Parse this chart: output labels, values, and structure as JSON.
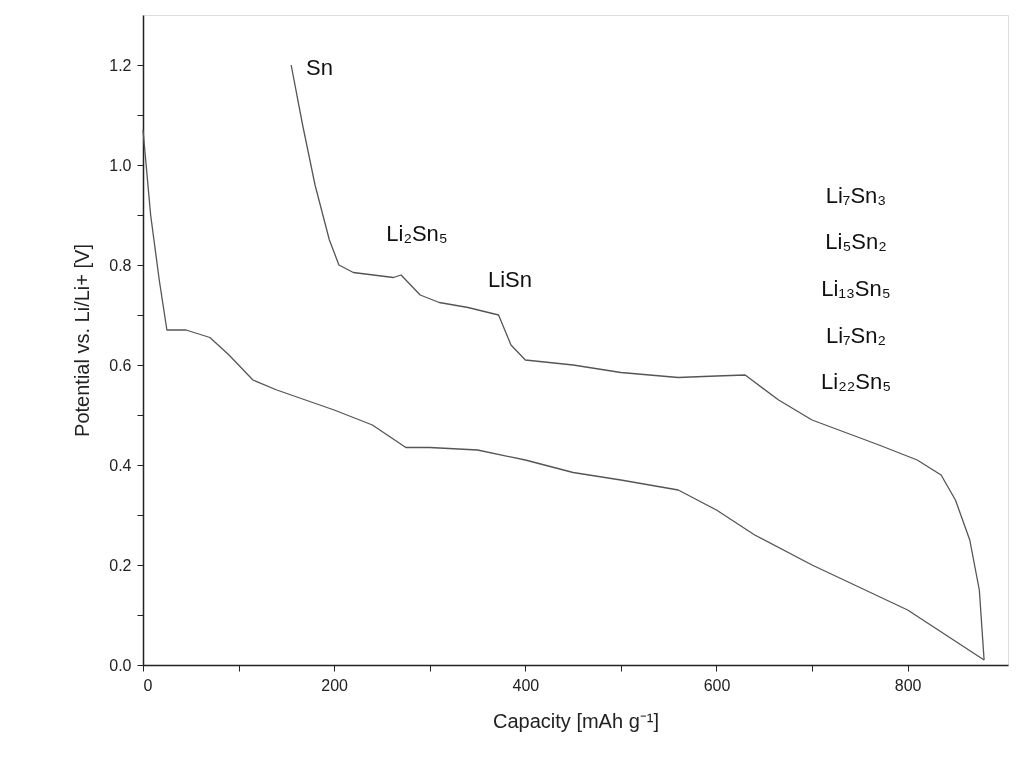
{
  "chart_data": {
    "type": "line",
    "xlabel": "Capacity [mAh g⁻¹]",
    "ylabel": "Potential vs. Li/Li+ [V]",
    "xlim": [
      0,
      905
    ],
    "ylim": [
      0,
      1.3
    ],
    "xticks": [
      0,
      {
        "value": 100,
        "label": null
      },
      200,
      {
        "value": 300,
        "label": null
      },
      400,
      {
        "value": 500,
        "label": null
      },
      600,
      {
        "value": 700,
        "label": null
      },
      800
    ],
    "yticks": [
      {
        "value": 0,
        "label": "0.0"
      },
      {
        "value": 0.1,
        "label": null
      },
      {
        "value": 0.2,
        "label": "0.2"
      },
      {
        "value": 0.3,
        "label": null
      },
      {
        "value": 0.4,
        "label": "0.4"
      },
      {
        "value": 0.5,
        "label": null
      },
      {
        "value": 0.6,
        "label": "0.6"
      },
      {
        "value": 0.7,
        "label": null
      },
      {
        "value": 0.8,
        "label": "0.8"
      },
      {
        "value": 0.9,
        "label": null
      },
      {
        "value": 1.0,
        "label": "1.0"
      },
      {
        "value": 1.1,
        "label": null
      },
      {
        "value": 1.2,
        "label": "1.2"
      }
    ],
    "grid": false,
    "marker": "none",
    "line_style": "solid",
    "series": [
      {
        "color": "#555555",
        "x": [
          0,
          8,
          17,
          25,
          45,
          70,
          90,
          115,
          140,
          200,
          240,
          275,
          300,
          350,
          400,
          450,
          500,
          560,
          600,
          640,
          700,
          800,
          880
        ],
        "values": [
          1.07,
          0.9,
          0.77,
          0.67,
          0.67,
          0.655,
          0.62,
          0.57,
          0.55,
          0.51,
          0.48,
          0.435,
          0.435,
          0.43,
          0.41,
          0.385,
          0.37,
          0.35,
          0.31,
          0.26,
          0.2,
          0.11,
          0.01
        ]
      },
      {
        "color": "#555555",
        "x": [
          880,
          875,
          865,
          850,
          835,
          810,
          770,
          700,
          665,
          630,
          600,
          560,
          500,
          450,
          400,
          385,
          372,
          340,
          310,
          290,
          270,
          262,
          220,
          205,
          195,
          180,
          167,
          155
        ],
        "values": [
          0.01,
          0.15,
          0.25,
          0.33,
          0.38,
          0.41,
          0.44,
          0.49,
          0.53,
          0.58,
          0.578,
          0.575,
          0.585,
          0.6,
          0.61,
          0.64,
          0.7,
          0.715,
          0.725,
          0.74,
          0.78,
          0.775,
          0.785,
          0.8,
          0.85,
          0.96,
          1.08,
          1.2
        ]
      }
    ],
    "annotations": [
      "Sn",
      "Li₂Sn₅",
      "LiSn",
      "Li₇Sn₃",
      "Li₅Sn₂",
      "Li₁₃Sn₅",
      "Li₇Sn₂",
      "Li₂₂Sn₅"
    ]
  }
}
